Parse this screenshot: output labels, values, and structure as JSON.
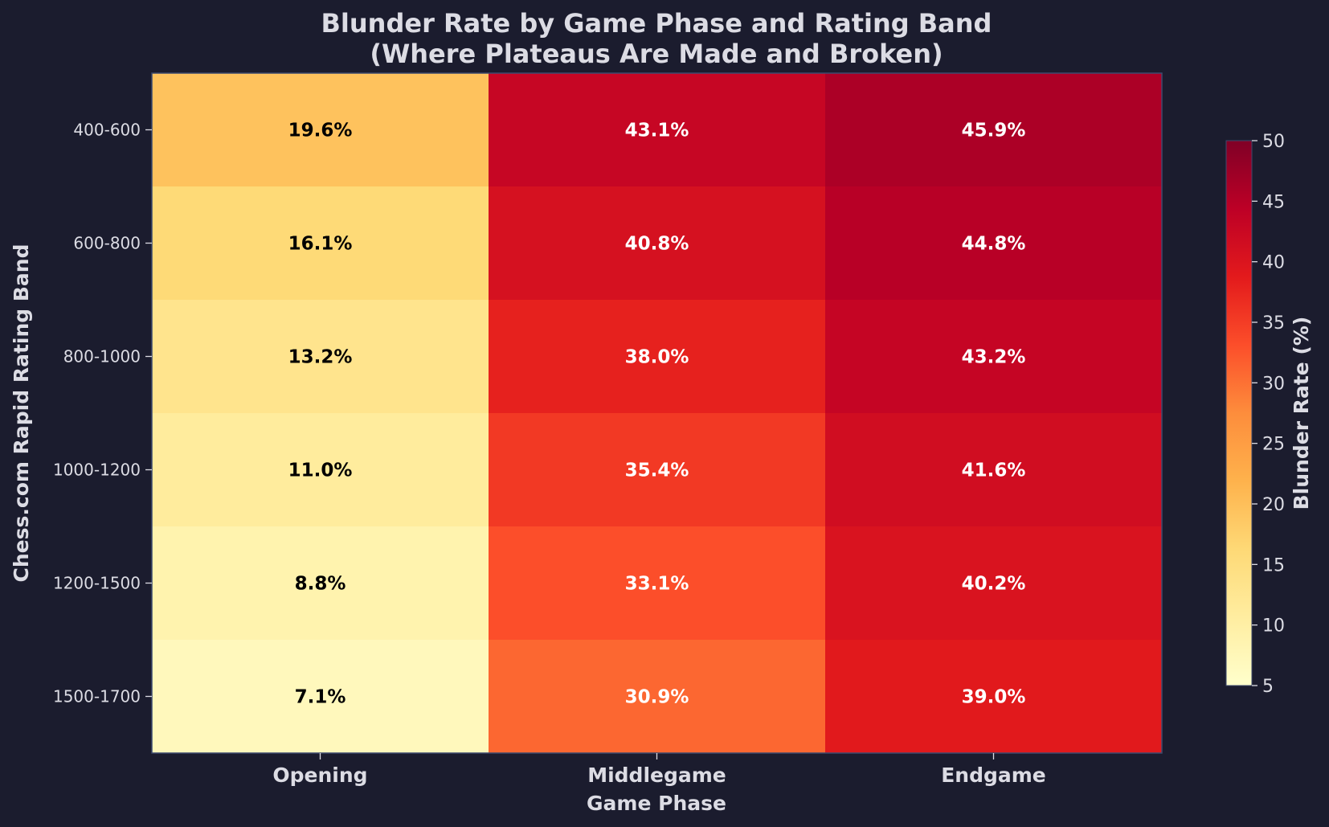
{
  "chart_data": {
    "type": "heatmap",
    "title_line1": "Blunder Rate by Game Phase and Rating Band",
    "title_line2": "(Where Plateaus Are Made and Broken)",
    "xlabel": "Game Phase",
    "ylabel": "Chess.com Rapid Rating Band",
    "x_categories": [
      "Opening",
      "Middlegame",
      "Endgame"
    ],
    "y_categories": [
      "400-600",
      "600-800",
      "800-1000",
      "1000-1200",
      "1200-1500",
      "1500-1700"
    ],
    "values": [
      [
        19.6,
        43.1,
        45.9
      ],
      [
        16.1,
        40.8,
        44.8
      ],
      [
        13.2,
        38.0,
        43.2
      ],
      [
        11.0,
        35.4,
        41.6
      ],
      [
        8.8,
        33.1,
        40.2
      ],
      [
        7.1,
        30.9,
        39.0
      ]
    ],
    "cell_labels": [
      [
        "19.6%",
        "43.1%",
        "45.9%"
      ],
      [
        "16.1%",
        "40.8%",
        "44.8%"
      ],
      [
        "13.2%",
        "38.0%",
        "43.2%"
      ],
      [
        "11.0%",
        "35.4%",
        "41.6%"
      ],
      [
        "8.8%",
        "33.1%",
        "40.2%"
      ],
      [
        "7.1%",
        "30.9%",
        "39.0%"
      ]
    ],
    "colormap": "YlOrRd",
    "color_range": [
      5,
      50
    ],
    "colorbar": {
      "label": "Blunder Rate (%)",
      "ticks": [
        5,
        10,
        15,
        20,
        25,
        30,
        35,
        40,
        45,
        50
      ],
      "tick_labels": [
        "5",
        "10",
        "15",
        "20",
        "25",
        "30",
        "35",
        "40",
        "45",
        "50"
      ]
    },
    "colors": {
      "background": "#1b1c2e",
      "text": "#dcdce4",
      "label_dark": "#000000",
      "label_light": "#ffffff",
      "frame": "#3c4a6e"
    }
  }
}
